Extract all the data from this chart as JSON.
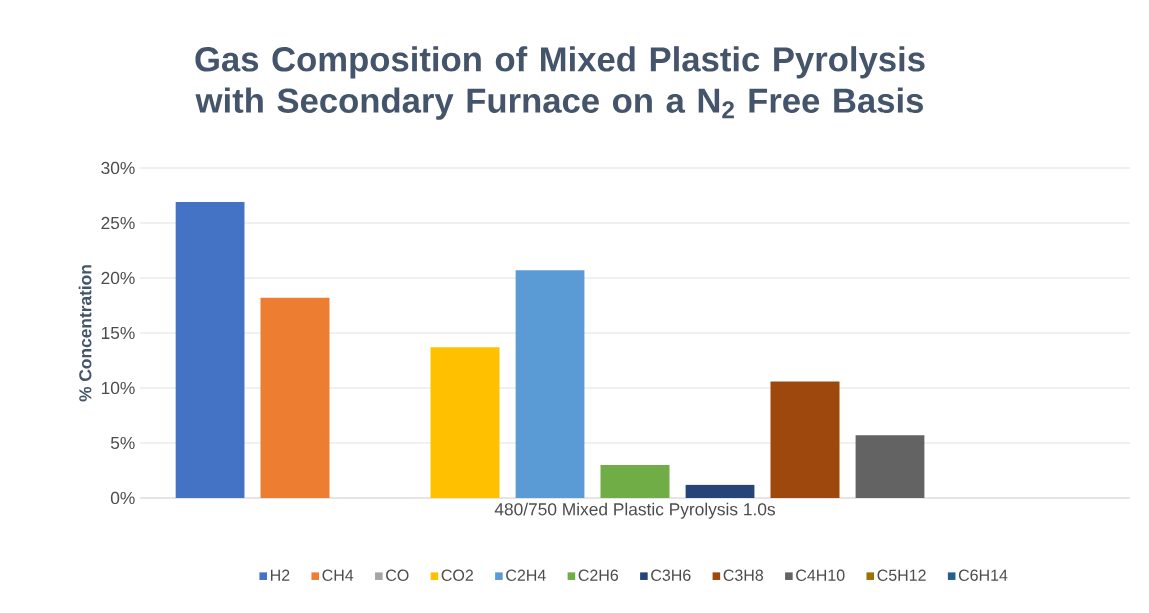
{
  "chart_data": {
    "type": "bar",
    "title": "Gas Composition of Mixed Plastic Pyrolysis with Secondary Furnace on a N$_{2}$ Free Basis",
    "ylabel": "% Concentration",
    "categories": [
      "480/750 Mixed Plastic Pyrolysis 1.0s"
    ],
    "series": [
      {
        "name": "H2",
        "color": "#4472c4",
        "values": [
          26.9
        ]
      },
      {
        "name": "CH4",
        "color": "#ed7d31",
        "values": [
          18.2
        ]
      },
      {
        "name": "CO",
        "color": "#a5a5a5",
        "values": [
          0
        ]
      },
      {
        "name": "CO2",
        "color": "#ffc000",
        "values": [
          13.7
        ]
      },
      {
        "name": "C2H4",
        "color": "#5b9bd5",
        "values": [
          20.7
        ]
      },
      {
        "name": "C2H6",
        "color": "#70ad47",
        "values": [
          3.0
        ]
      },
      {
        "name": "C3H6",
        "color": "#264478",
        "values": [
          1.2
        ]
      },
      {
        "name": "C3H8",
        "color": "#9e480e",
        "values": [
          10.6
        ]
      },
      {
        "name": "C4H10",
        "color": "#636363",
        "values": [
          5.7
        ]
      },
      {
        "name": "C5H12",
        "color": "#997300",
        "values": [
          0
        ]
      },
      {
        "name": "C6H14",
        "color": "#255e91",
        "values": [
          0
        ]
      }
    ],
    "ylim": [
      0,
      30
    ],
    "yticks": [
      {
        "value": 0,
        "label": "0%"
      },
      {
        "value": 5,
        "label": "5%"
      },
      {
        "value": 10,
        "label": "10%"
      },
      {
        "value": 15,
        "label": "15%"
      },
      {
        "value": 20,
        "label": "20%"
      },
      {
        "value": 25,
        "label": "25%"
      },
      {
        "value": 30,
        "label": "30%"
      }
    ],
    "grid": "y",
    "legend": "bottom"
  }
}
